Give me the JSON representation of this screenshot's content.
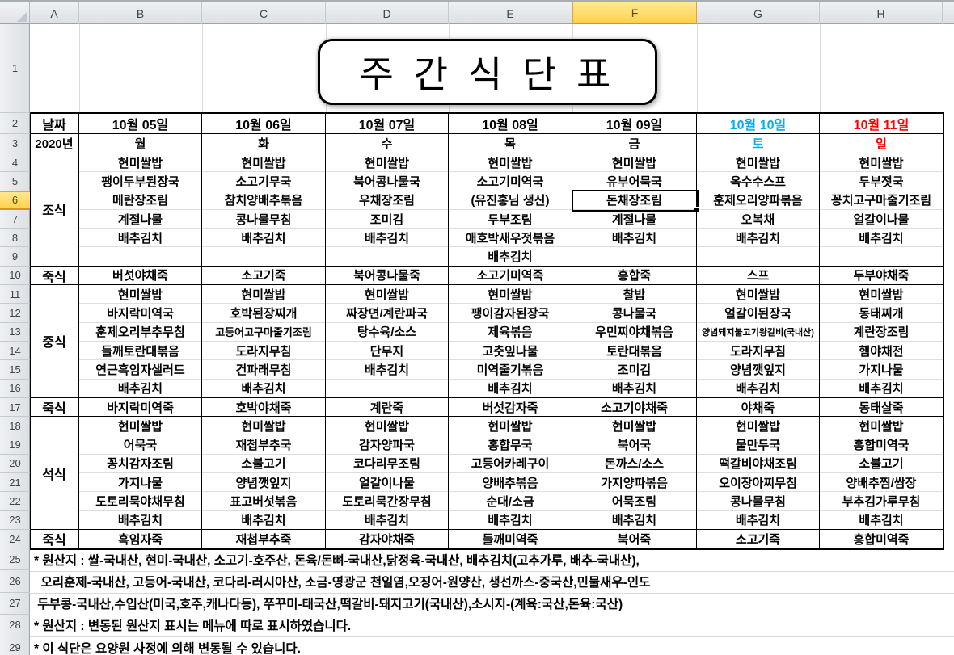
{
  "sheet": {
    "columns": [
      "A",
      "B",
      "C",
      "D",
      "E",
      "F",
      "G",
      "H"
    ],
    "row_numbers": [
      "1",
      "2",
      "3",
      "4",
      "5",
      "6",
      "7",
      "8",
      "9",
      "10",
      "11",
      "12",
      "13",
      "14",
      "15",
      "16",
      "17",
      "18",
      "19",
      "20",
      "21",
      "22",
      "23",
      "24",
      "25",
      "26",
      "27",
      "28",
      "29"
    ],
    "selected_column": "F",
    "selected_row": "6",
    "active_cell": "F6"
  },
  "title": "주 간 식 단 표",
  "colors": {
    "weekday": "#000000",
    "saturday": "#00B0F0",
    "sunday": "#FF0000",
    "selection_yellow": "#FFD24D"
  },
  "header": {
    "date_label": "날짜",
    "year_label": "2020년",
    "days": [
      {
        "date": "10월 05일",
        "dow": "월",
        "color": "weekday"
      },
      {
        "date": "10월 06일",
        "dow": "화",
        "color": "weekday"
      },
      {
        "date": "10월 07일",
        "dow": "수",
        "color": "weekday"
      },
      {
        "date": "10월 08일",
        "dow": "목",
        "color": "weekday"
      },
      {
        "date": "10월 09일",
        "dow": "금",
        "color": "weekday"
      },
      {
        "date": "10월 10일",
        "dow": "토",
        "color": "saturday"
      },
      {
        "date": "10월 11일",
        "dow": "일",
        "color": "sunday"
      }
    ]
  },
  "sections": [
    {
      "label": "조식",
      "days": [
        [
          "현미쌀밥",
          "팽이두부된장국",
          "메란장조림",
          "계절나물",
          "배추김치",
          ""
        ],
        [
          "현미쌀밥",
          "소고기무국",
          "참치양배추볶음",
          "콩나물무침",
          "배추김치",
          ""
        ],
        [
          "현미쌀밥",
          "북어콩나물국",
          "우채장조림",
          "조미김",
          "배추김치",
          ""
        ],
        [
          "현미쌀밥",
          "소고기미역국",
          "(유진홍님 생신)",
          "두부조림",
          "애호박새우젓볶음",
          "배추김치"
        ],
        [
          "현미쌀밥",
          "유부어묵국",
          "돈채장조림",
          "계절나물",
          "배추김치",
          ""
        ],
        [
          "현미쌀밥",
          "옥수수스프",
          "훈제오리양파볶음",
          "오복채",
          "배추김치",
          ""
        ],
        [
          "현미쌀밥",
          "두부젓국",
          "꽁치고구마줄기조림",
          "얼갈이나물",
          "배추김치",
          ""
        ]
      ]
    },
    {
      "label": "죽식",
      "days": [
        "버섯야채죽",
        "소고기죽",
        "북어콩나물죽",
        "소고기미역죽",
        "홍합죽",
        "스프",
        "두부야채죽"
      ]
    },
    {
      "label": "중식",
      "days": [
        [
          "현미쌀밥",
          "바지락미역국",
          "훈제오리부추무침",
          "들깨토란대볶음",
          "연근흑임자샐러드",
          "배추김치"
        ],
        [
          "현미쌀밥",
          "호박된장찌개",
          "고등어고구마줄기조림",
          "도라지무침",
          "건파래무침",
          "배추김치"
        ],
        [
          "현미쌀밥",
          "짜장면/계란파국",
          "탕수육/소스",
          "단무지",
          "배추김치",
          ""
        ],
        [
          "현미쌀밥",
          "팽이감자된장국",
          "제육볶음",
          "고춧잎나물",
          "미역줄기볶음",
          "배추김치"
        ],
        [
          "찰밥",
          "콩나물국",
          "우민찌야채볶음",
          "토란대볶음",
          "조미김",
          "배추김치"
        ],
        [
          "현미쌀밥",
          "얼갈이된장국",
          "양념돼지불고기왕갈비(국내산)",
          "도라지무침",
          "양념깻잎지",
          "배추김치"
        ],
        [
          "현미쌀밥",
          "동태찌개",
          "계란장조림",
          "햄야채전",
          "가지나물",
          "배추김치"
        ]
      ]
    },
    {
      "label": "죽식",
      "days": [
        "바지락미역죽",
        "호박야채죽",
        "계란죽",
        "버섯감자죽",
        "소고기야채죽",
        "야채죽",
        "동태살죽"
      ]
    },
    {
      "label": "석식",
      "days": [
        [
          "현미쌀밥",
          "어묵국",
          "꽁치감자조림",
          "가지나물",
          "도토리묵야채무침",
          "배추김치"
        ],
        [
          "현미쌀밥",
          "재첩부추국",
          "소불고기",
          "양념깻잎지",
          "표고버섯볶음",
          "배추김치"
        ],
        [
          "현미쌀밥",
          "감자양파국",
          "코다리무조림",
          "얼갈이나물",
          "도토리묵간장무침",
          "배추김치"
        ],
        [
          "현미쌀밥",
          "홍합무국",
          "고등어카레구이",
          "양배추볶음",
          "순대/소금",
          "배추김치"
        ],
        [
          "현미쌀밥",
          "북어국",
          "돈까스/소스",
          "가지양파볶음",
          "어묵조림",
          "배추김치"
        ],
        [
          "현미쌀밥",
          "물만두국",
          "떡갈비야채조림",
          "오이장아찌무침",
          "콩나물무침",
          "배추김치"
        ],
        [
          "현미쌀밥",
          "홍합미역국",
          "소불고기",
          "양배추찜/쌈장",
          "부추김가루무침",
          "배추김치"
        ]
      ]
    },
    {
      "label": "죽식",
      "days": [
        "흑임자죽",
        "재첩부추죽",
        "감자야채죽",
        "들깨미역죽",
        "북어죽",
        "소고기죽",
        "홍합미역죽"
      ]
    }
  ],
  "notes": [
    "* 원산지 : 쌀-국내산, 현미-국내산, 소고기-호주산, 돈육/돈뼈-국내산,닭정육-국내산, 배추김치(고추가루, 배추-국내산),",
    "  오리훈제-국내산, 고등어-국내산, 코다리-러시아산, 소금-영광군 천일염,오징어-원양산, 생선까스-중국산,민물새우-인도",
    " 두부콩-국내산,수입산(미국,호주,캐나다등), 쭈꾸미-태국산,떡갈비-돼지고기(국내산),소시지-(계육:국산,돈육:국산)",
    "* 원산지 : 변동된 원산지 표시는 메뉴에 따로 표시하였습니다.",
    "* 이 식단은 요양원 사정에 의해 변동될 수 있습니다."
  ]
}
